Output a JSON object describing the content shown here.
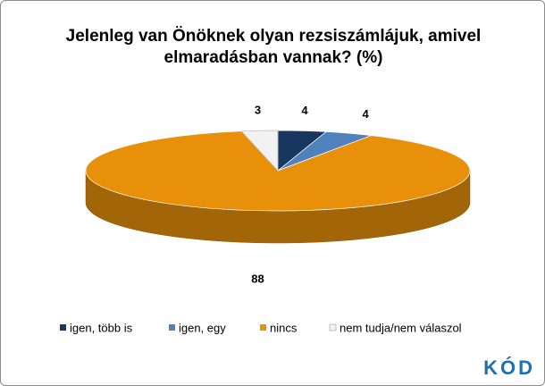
{
  "chart_data": {
    "type": "pie",
    "title": "Jelenleg van Önöknek olyan rezsiszámlájuk, amivel elmaradásban vannak? (%)",
    "categories": [
      "igen, több is",
      "igen, egy",
      "nincs",
      "nem tudja/nem válaszol"
    ],
    "values": [
      4,
      4,
      88,
      3
    ],
    "colors": [
      "#17375e",
      "#4f81bd",
      "#e8900a",
      "#f2f2f2"
    ],
    "legend": "bottom"
  },
  "logo": "KÓD"
}
